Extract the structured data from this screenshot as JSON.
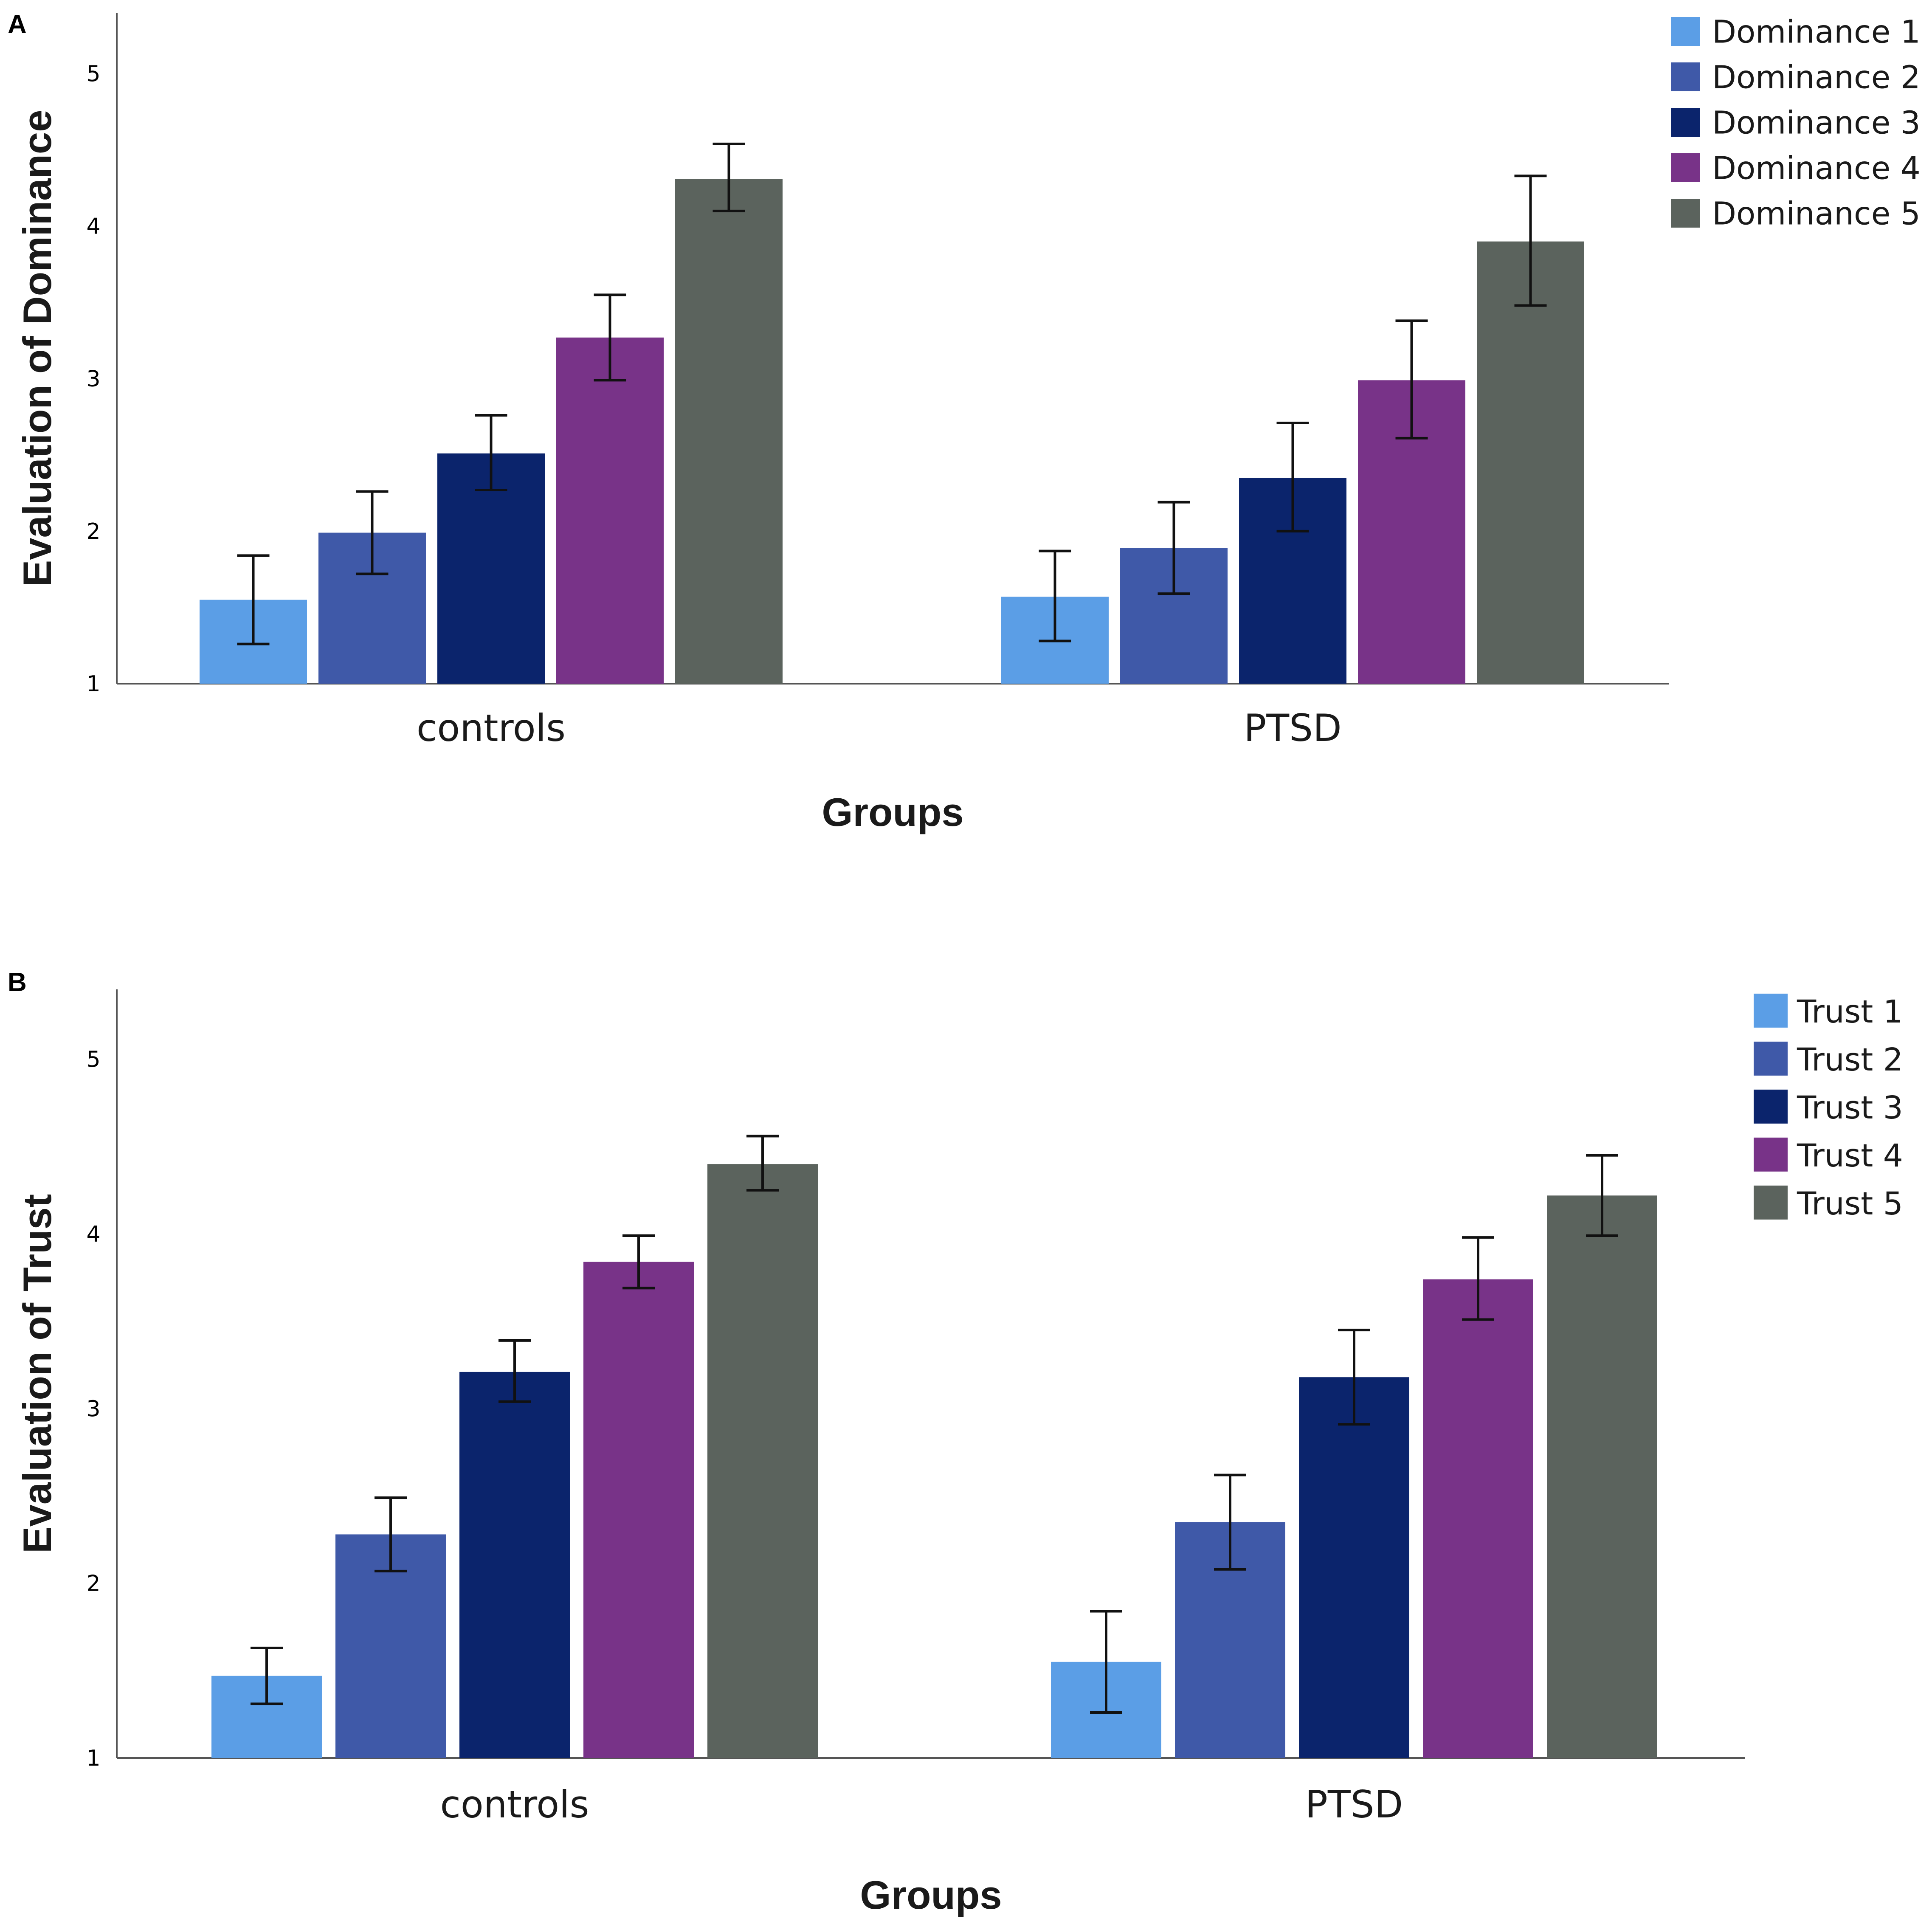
{
  "chart_data": [
    {
      "panel_label": "A",
      "type": "bar",
      "ylabel": "Evaluation of Dominance",
      "xlabel": "Groups",
      "ylim": [
        1,
        5.4
      ],
      "yticks": [
        "1",
        "2",
        "3",
        "4",
        "5"
      ],
      "categories": [
        "controls",
        "PTSD"
      ],
      "legend_position": "top-right",
      "series": [
        {
          "name": "Dominance 1",
          "color": "#5b9ee6",
          "values": [
            1.55,
            1.57
          ],
          "err_low": [
            1.26,
            1.28
          ],
          "err_high": [
            1.84,
            1.87
          ]
        },
        {
          "name": "Dominance 2",
          "color": "#3f59a8",
          "values": [
            1.99,
            1.89
          ],
          "err_low": [
            1.72,
            1.59
          ],
          "err_high": [
            2.26,
            2.19
          ]
        },
        {
          "name": "Dominance 3",
          "color": "#0b246c",
          "values": [
            2.51,
            2.35
          ],
          "err_low": [
            2.27,
            2.0
          ],
          "err_high": [
            2.76,
            2.71
          ]
        },
        {
          "name": "Dominance 4",
          "color": "#783388",
          "values": [
            3.27,
            2.99
          ],
          "err_low": [
            2.99,
            2.61
          ],
          "err_high": [
            3.55,
            3.38
          ]
        },
        {
          "name": "Dominance 5",
          "color": "#5b635d",
          "values": [
            4.31,
            3.9
          ],
          "err_low": [
            4.1,
            3.48
          ],
          "err_high": [
            4.54,
            4.33
          ]
        }
      ]
    },
    {
      "panel_label": "B",
      "type": "bar",
      "ylabel": "Evaluation of Trust",
      "xlabel": "Groups",
      "ylim": [
        1,
        5.4
      ],
      "yticks": [
        "1",
        "2",
        "3",
        "4",
        "5"
      ],
      "categories": [
        "controls",
        "PTSD"
      ],
      "legend_position": "top-right",
      "series": [
        {
          "name": "Trust 1",
          "color": "#5b9ee6",
          "values": [
            1.47,
            1.55
          ],
          "err_low": [
            1.31,
            1.26
          ],
          "err_high": [
            1.63,
            1.84
          ]
        },
        {
          "name": "Trust 2",
          "color": "#3f59a8",
          "values": [
            2.28,
            2.35
          ],
          "err_low": [
            2.07,
            2.08
          ],
          "err_high": [
            2.49,
            2.62
          ]
        },
        {
          "name": "Trust 3",
          "color": "#0b246c",
          "values": [
            3.21,
            3.18
          ],
          "err_low": [
            3.04,
            2.91
          ],
          "err_high": [
            3.39,
            3.45
          ]
        },
        {
          "name": "Trust 4",
          "color": "#783388",
          "values": [
            3.84,
            3.74
          ],
          "err_low": [
            3.69,
            3.51
          ],
          "err_high": [
            3.99,
            3.98
          ]
        },
        {
          "name": "Trust 5",
          "color": "#5b635d",
          "values": [
            4.4,
            4.22
          ],
          "err_low": [
            4.25,
            3.99
          ],
          "err_high": [
            4.56,
            4.45
          ]
        }
      ]
    }
  ]
}
